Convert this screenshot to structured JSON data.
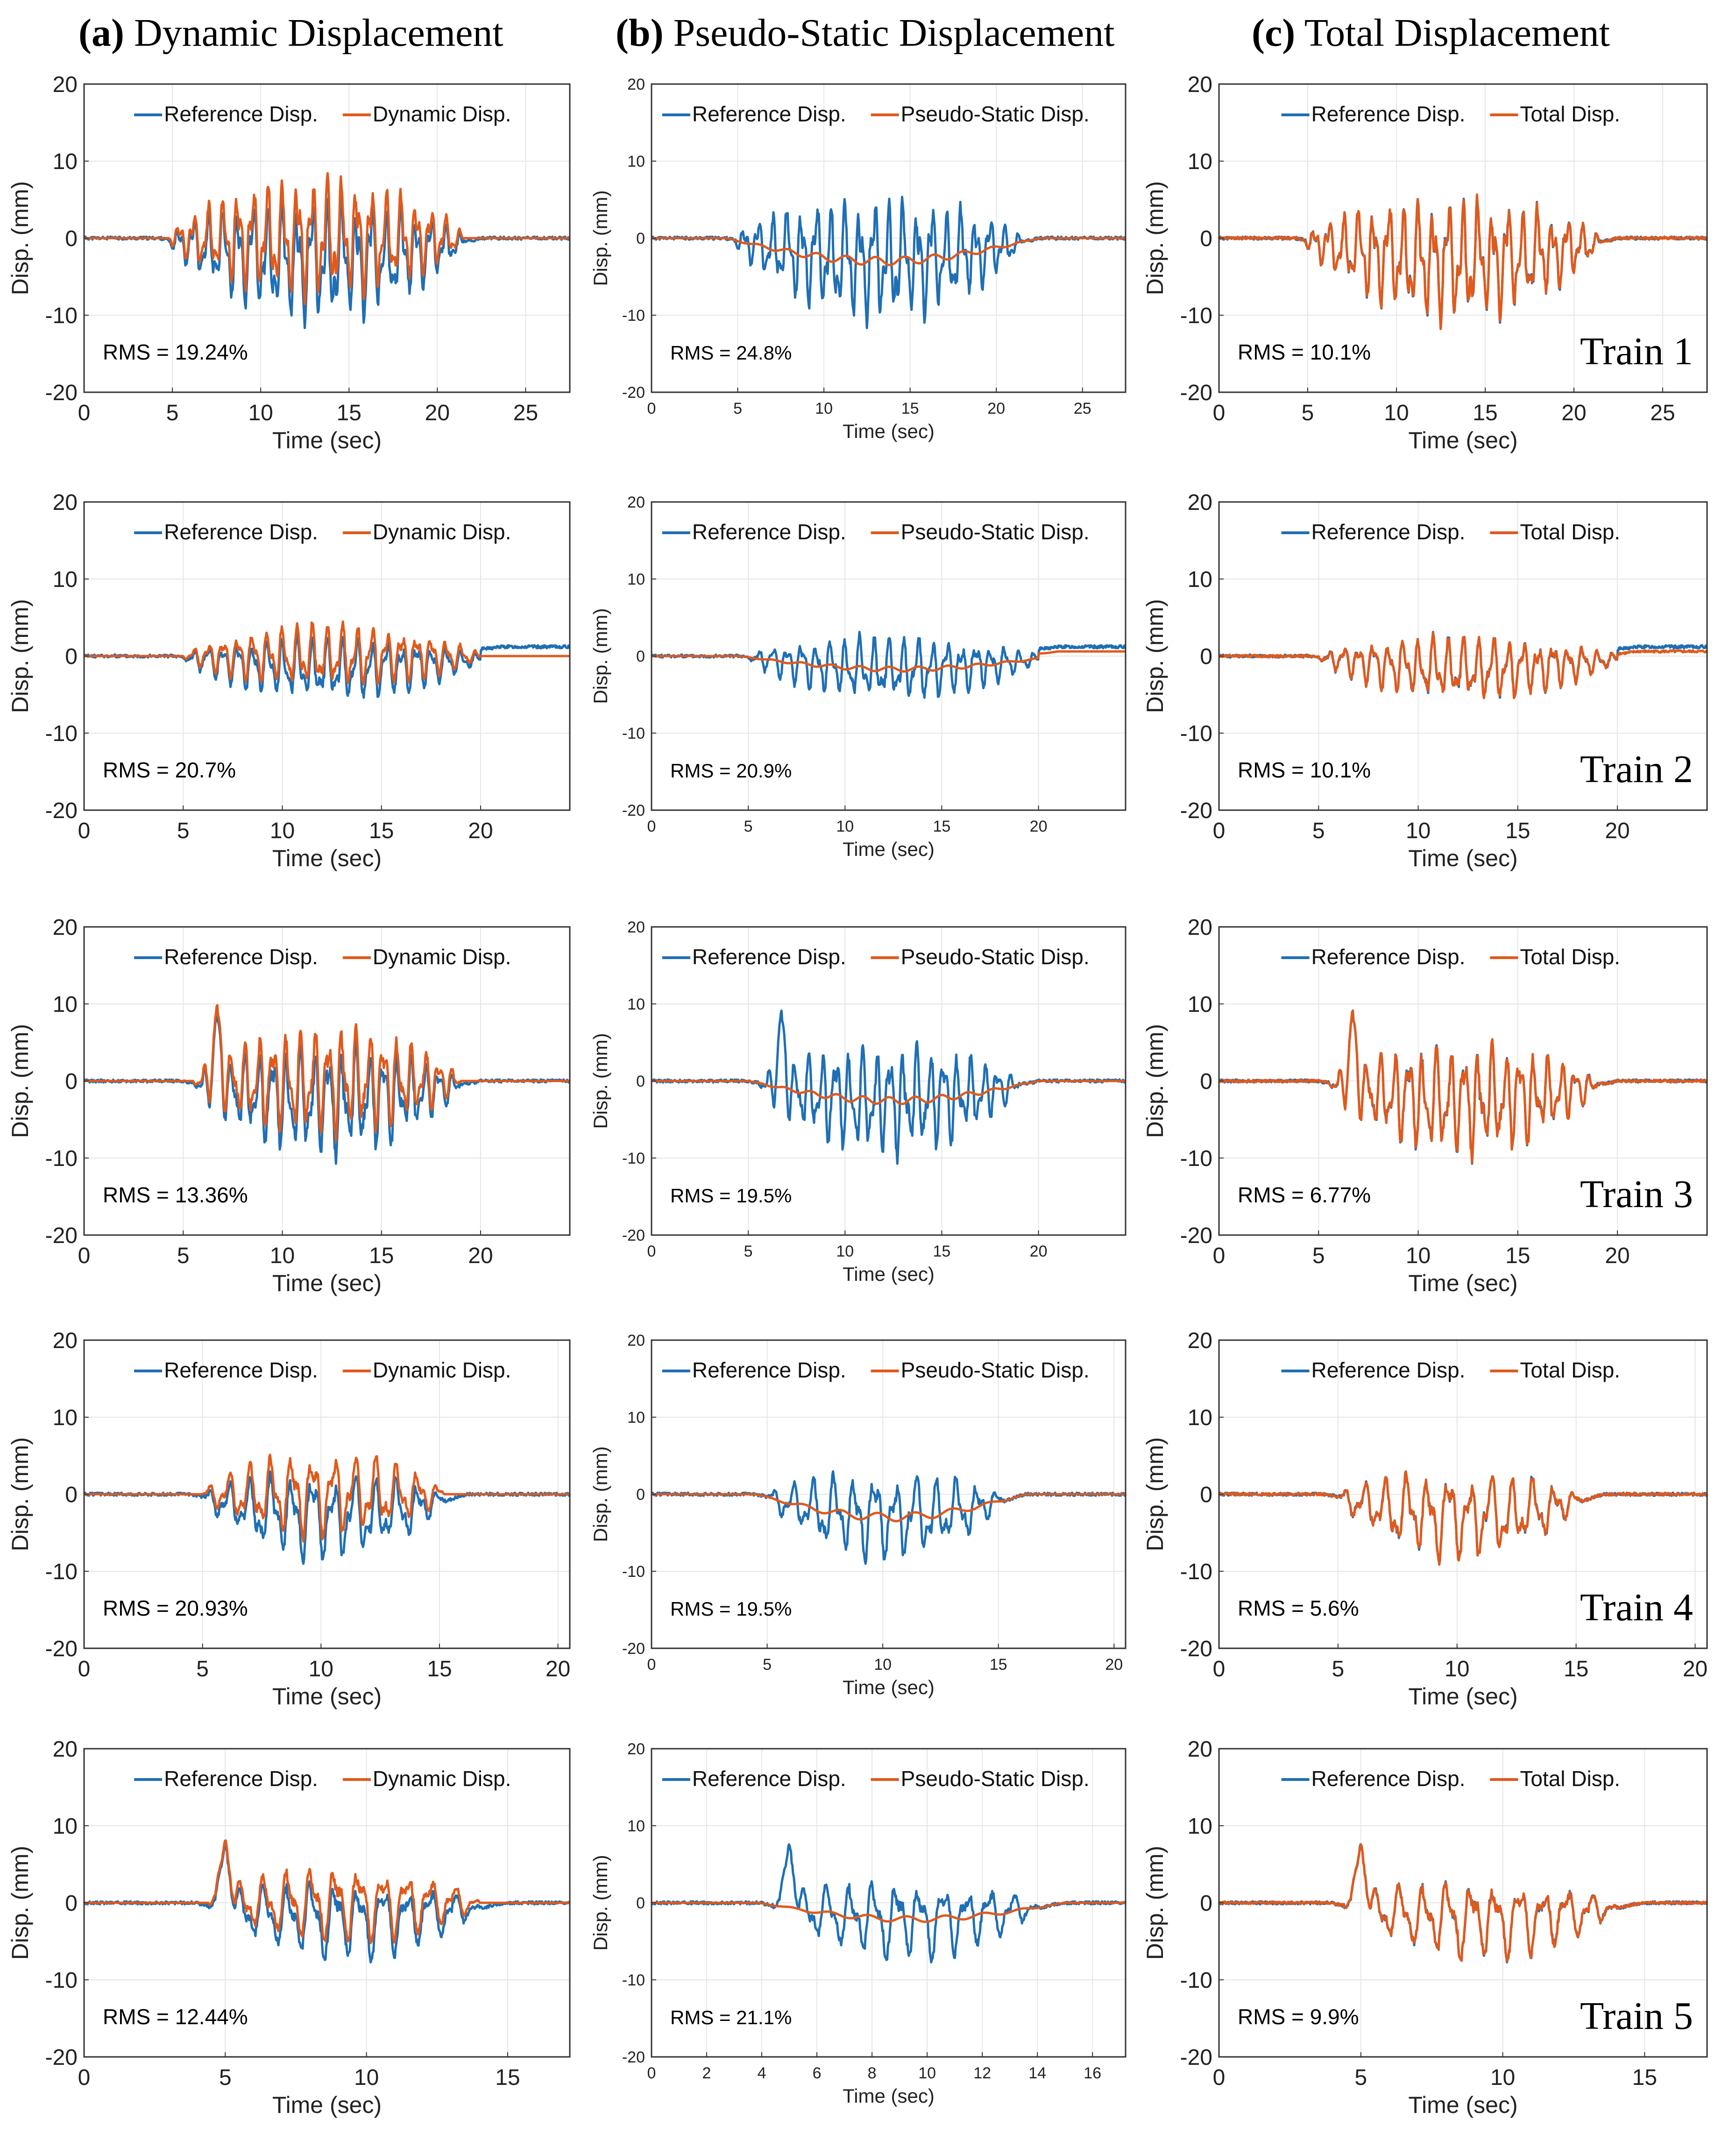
{
  "column_titles": [
    {
      "letter": "(a)",
      "text": "Dynamic Displacement"
    },
    {
      "letter": "(b)",
      "text": "Pseudo-Static Displacement"
    },
    {
      "letter": "(c)",
      "text": "Total Displacement"
    }
  ],
  "colors": {
    "reference": "#1f6fb4",
    "estimate": "#e05a1c",
    "grid": "#e6e6e6",
    "axis": "#333333"
  },
  "chart_data": [
    {
      "type": "line",
      "row": 1,
      "col": 1,
      "title": "Dynamic Displacement",
      "xlabel": "Time (sec)",
      "ylabel": "Disp. (mm)",
      "xlim": [
        0,
        27.5
      ],
      "ylim": [
        -20,
        20
      ],
      "xticks": [
        0,
        5,
        10,
        15,
        20,
        25
      ],
      "yticks": [
        -20,
        -10,
        0,
        10,
        20
      ],
      "series": [
        {
          "name": "Reference Disp.",
          "values": []
        },
        {
          "name": "Dynamic Disp.",
          "values": []
        }
      ],
      "rms": "RMS = 19.24%",
      "train": "",
      "seed": 11,
      "start": 4.8,
      "end": 21.5,
      "amp": 7.5,
      "offset": -3.5,
      "kind": "dyn"
    },
    {
      "type": "line",
      "row": 1,
      "col": 2,
      "title": "Pseudo-Static Displacement",
      "xlabel": "Time (sec)",
      "ylabel": "Disp. (mm)",
      "xlim": [
        0,
        27.5
      ],
      "ylim": [
        -20,
        20
      ],
      "xticks": [
        0,
        5,
        10,
        15,
        20,
        25
      ],
      "yticks": [
        -20,
        -10,
        0,
        10,
        20
      ],
      "series": [
        {
          "name": "Reference Disp.",
          "values": []
        },
        {
          "name": "Pseudo-Static Disp.",
          "values": []
        }
      ],
      "rms": "RMS = 24.8%",
      "train": "",
      "seed": 11,
      "start": 4.8,
      "end": 21.5,
      "amp": 7.5,
      "offset": -3.5,
      "kind": "ps"
    },
    {
      "type": "line",
      "row": 1,
      "col": 3,
      "title": "Total Displacement",
      "xlabel": "Time (sec)",
      "ylabel": "Disp. (mm)",
      "xlim": [
        0,
        27.5
      ],
      "ylim": [
        -20,
        20
      ],
      "xticks": [
        0,
        5,
        10,
        15,
        20,
        25
      ],
      "yticks": [
        -20,
        -10,
        0,
        10,
        20
      ],
      "series": [
        {
          "name": "Reference Disp.",
          "values": []
        },
        {
          "name": "Total Disp.",
          "values": []
        }
      ],
      "rms": "RMS = 10.1%",
      "train": "Train 1",
      "seed": 11,
      "start": 4.8,
      "end": 21.5,
      "amp": 7.5,
      "offset": -3.5,
      "kind": "tot"
    },
    {
      "type": "line",
      "row": 2,
      "col": 1,
      "title": "Dynamic Displacement",
      "xlabel": "Time (sec)",
      "ylabel": "Disp. (mm)",
      "xlim": [
        0,
        24.5
      ],
      "ylim": [
        -20,
        20
      ],
      "xticks": [
        0,
        5,
        10,
        15,
        20
      ],
      "yticks": [
        -20,
        -10,
        0,
        10,
        20
      ],
      "series": [
        {
          "name": "Reference Disp.",
          "values": []
        },
        {
          "name": "Dynamic Disp.",
          "values": []
        }
      ],
      "rms": "RMS = 20.7%",
      "train": "",
      "seed": 23,
      "start": 5.0,
      "end": 20.0,
      "amp": 4.0,
      "offset": -2.0,
      "kind": "dyn",
      "tail": 1.2
    },
    {
      "type": "line",
      "row": 2,
      "col": 2,
      "title": "Pseudo-Static Displacement",
      "xlabel": "Time (sec)",
      "ylabel": "Disp. (mm)",
      "xlim": [
        0,
        24.5
      ],
      "ylim": [
        -20,
        20
      ],
      "xticks": [
        0,
        5,
        10,
        15,
        20
      ],
      "yticks": [
        -20,
        -10,
        0,
        10,
        20
      ],
      "series": [
        {
          "name": "Reference Disp.",
          "values": []
        },
        {
          "name": "Pseudo-Static Disp.",
          "values": []
        }
      ],
      "rms": "RMS = 20.9%",
      "train": "",
      "seed": 23,
      "start": 5.0,
      "end": 20.0,
      "amp": 4.0,
      "offset": -2.0,
      "kind": "ps",
      "tail": 1.2
    },
    {
      "type": "line",
      "row": 2,
      "col": 3,
      "title": "Total Displacement",
      "xlabel": "Time (sec)",
      "ylabel": "Disp. (mm)",
      "xlim": [
        0,
        24.5
      ],
      "ylim": [
        -20,
        20
      ],
      "xticks": [
        0,
        5,
        10,
        15,
        20
      ],
      "yticks": [
        -20,
        -10,
        0,
        10,
        20
      ],
      "series": [
        {
          "name": "Reference Disp.",
          "values": []
        },
        {
          "name": "Total Disp.",
          "values": []
        }
      ],
      "rms": "RMS = 10.1%",
      "train": "Train 2",
      "seed": 23,
      "start": 5.0,
      "end": 20.0,
      "amp": 4.0,
      "offset": -2.0,
      "kind": "tot",
      "tail": 1.2
    },
    {
      "type": "line",
      "row": 3,
      "col": 1,
      "title": "Dynamic Displacement",
      "xlabel": "Time (sec)",
      "ylabel": "Disp. (mm)",
      "xlim": [
        0,
        24.5
      ],
      "ylim": [
        -20,
        20
      ],
      "xticks": [
        0,
        5,
        10,
        15,
        20
      ],
      "yticks": [
        -20,
        -10,
        0,
        10,
        20
      ],
      "series": [
        {
          "name": "Reference Disp.",
          "values": []
        },
        {
          "name": "Dynamic Disp.",
          "values": []
        }
      ],
      "rms": "RMS = 13.36%",
      "train": "",
      "seed": 37,
      "start": 5.5,
      "end": 19.0,
      "amp": 7.0,
      "offset": -3.0,
      "kind": "dyn",
      "spike": 6.7
    },
    {
      "type": "line",
      "row": 3,
      "col": 2,
      "title": "Pseudo-Static Displacement",
      "xlabel": "Time (sec)",
      "ylabel": "Disp. (mm)",
      "xlim": [
        0,
        24.5
      ],
      "ylim": [
        -20,
        20
      ],
      "xticks": [
        0,
        5,
        10,
        15,
        20
      ],
      "yticks": [
        -20,
        -10,
        0,
        10,
        20
      ],
      "series": [
        {
          "name": "Reference Disp.",
          "values": []
        },
        {
          "name": "Pseudo-Static Disp.",
          "values": []
        }
      ],
      "rms": "RMS = 19.5%",
      "train": "",
      "seed": 37,
      "start": 5.5,
      "end": 19.0,
      "amp": 7.0,
      "offset": -3.0,
      "kind": "ps",
      "spike": 6.7
    },
    {
      "type": "line",
      "row": 3,
      "col": 3,
      "title": "Total Displacement",
      "xlabel": "Time (sec)",
      "ylabel": "Disp. (mm)",
      "xlim": [
        0,
        24.5
      ],
      "ylim": [
        -20,
        20
      ],
      "xticks": [
        0,
        5,
        10,
        15,
        20
      ],
      "yticks": [
        -20,
        -10,
        0,
        10,
        20
      ],
      "series": [
        {
          "name": "Reference Disp.",
          "values": []
        },
        {
          "name": "Total Disp.",
          "values": []
        }
      ],
      "rms": "RMS = 6.77%",
      "train": "Train 3",
      "seed": 37,
      "start": 5.5,
      "end": 19.0,
      "amp": 7.0,
      "offset": -3.0,
      "kind": "tot",
      "spike": 6.7
    },
    {
      "type": "line",
      "row": 4,
      "col": 1,
      "title": "Dynamic Displacement",
      "xlabel": "Time (sec)",
      "ylabel": "Disp. (mm)",
      "xlim": [
        0,
        20.5
      ],
      "ylim": [
        -20,
        20
      ],
      "xticks": [
        0,
        5,
        10,
        15,
        20
      ],
      "yticks": [
        -20,
        -10,
        0,
        10,
        20
      ],
      "series": [
        {
          "name": "Reference Disp.",
          "values": []
        },
        {
          "name": "Dynamic Disp.",
          "values": []
        }
      ],
      "rms": "RMS = 20.93%",
      "train": "",
      "seed": 51,
      "start": 5.0,
      "end": 15.2,
      "amp": 5.5,
      "offset": -3.5,
      "kind": "dyn"
    },
    {
      "type": "line",
      "row": 4,
      "col": 2,
      "title": "Pseudo-Static Displacement",
      "xlabel": "Time (sec)",
      "ylabel": "Disp. (mm)",
      "xlim": [
        0,
        20.5
      ],
      "ylim": [
        -20,
        20
      ],
      "xticks": [
        0,
        5,
        10,
        15,
        20
      ],
      "yticks": [
        -20,
        -10,
        0,
        10,
        20
      ],
      "series": [
        {
          "name": "Reference Disp.",
          "values": []
        },
        {
          "name": "Pseudo-Static Disp.",
          "values": []
        }
      ],
      "rms": "RMS = 19.5%",
      "train": "",
      "seed": 51,
      "start": 5.0,
      "end": 15.2,
      "amp": 5.5,
      "offset": -3.5,
      "kind": "ps"
    },
    {
      "type": "line",
      "row": 4,
      "col": 3,
      "title": "Total Displacement",
      "xlabel": "Time (sec)",
      "ylabel": "Disp. (mm)",
      "xlim": [
        0,
        20.5
      ],
      "ylim": [
        -20,
        20
      ],
      "xticks": [
        0,
        5,
        10,
        15,
        20
      ],
      "yticks": [
        -20,
        -10,
        0,
        10,
        20
      ],
      "series": [
        {
          "name": "Reference Disp.",
          "values": []
        },
        {
          "name": "Total Disp.",
          "values": []
        }
      ],
      "rms": "RMS = 5.6%",
      "train": "Train 4",
      "seed": 51,
      "start": 5.0,
      "end": 15.2,
      "amp": 5.5,
      "offset": -3.5,
      "kind": "tot"
    },
    {
      "type": "line",
      "row": 5,
      "col": 1,
      "title": "Dynamic Displacement",
      "xlabel": "Time (sec)",
      "ylabel": "Disp. (mm)",
      "xlim": [
        0,
        17.2
      ],
      "ylim": [
        -20,
        20
      ],
      "xticks": [
        0,
        5,
        10,
        15
      ],
      "yticks": [
        -20,
        -10,
        0,
        10,
        20
      ],
      "series": [
        {
          "name": "Reference Disp.",
          "values": []
        },
        {
          "name": "Dynamic Disp.",
          "values": []
        }
      ],
      "rms": "RMS = 12.44%",
      "train": "",
      "seed": 67,
      "start": 4.4,
      "end": 14.0,
      "amp": 5.0,
      "offset": -2.5,
      "kind": "dyn",
      "spike": 5.0
    },
    {
      "type": "line",
      "row": 5,
      "col": 2,
      "title": "Pseudo-Static Displacement",
      "xlabel": "Time (sec)",
      "ylabel": "Disp. (mm)",
      "xlim": [
        0,
        17.2
      ],
      "ylim": [
        -20,
        20
      ],
      "xticks": [
        0,
        2,
        4,
        6,
        8,
        10,
        12,
        14,
        16
      ],
      "yticks": [
        -20,
        -10,
        0,
        10,
        20
      ],
      "series": [
        {
          "name": "Reference Disp.",
          "values": []
        },
        {
          "name": "Pseudo-Static Disp.",
          "values": []
        }
      ],
      "rms": "RMS = 21.1%",
      "train": "",
      "seed": 67,
      "start": 4.4,
      "end": 14.0,
      "amp": 5.0,
      "offset": -2.5,
      "kind": "ps",
      "spike": 5.0
    },
    {
      "type": "line",
      "row": 5,
      "col": 3,
      "title": "Total Displacement",
      "xlabel": "Time (sec)",
      "ylabel": "Disp. (mm)",
      "xlim": [
        0,
        17.2
      ],
      "ylim": [
        -20,
        20
      ],
      "xticks": [
        0,
        5,
        10,
        15
      ],
      "yticks": [
        -20,
        -10,
        0,
        10,
        20
      ],
      "series": [
        {
          "name": "Reference Disp.",
          "values": []
        },
        {
          "name": "Total Disp.",
          "values": []
        }
      ],
      "rms": "RMS = 9.9%",
      "train": "Train 5",
      "seed": 67,
      "start": 4.4,
      "end": 14.0,
      "amp": 5.0,
      "offset": -2.5,
      "kind": "tot",
      "spike": 5.0
    }
  ]
}
